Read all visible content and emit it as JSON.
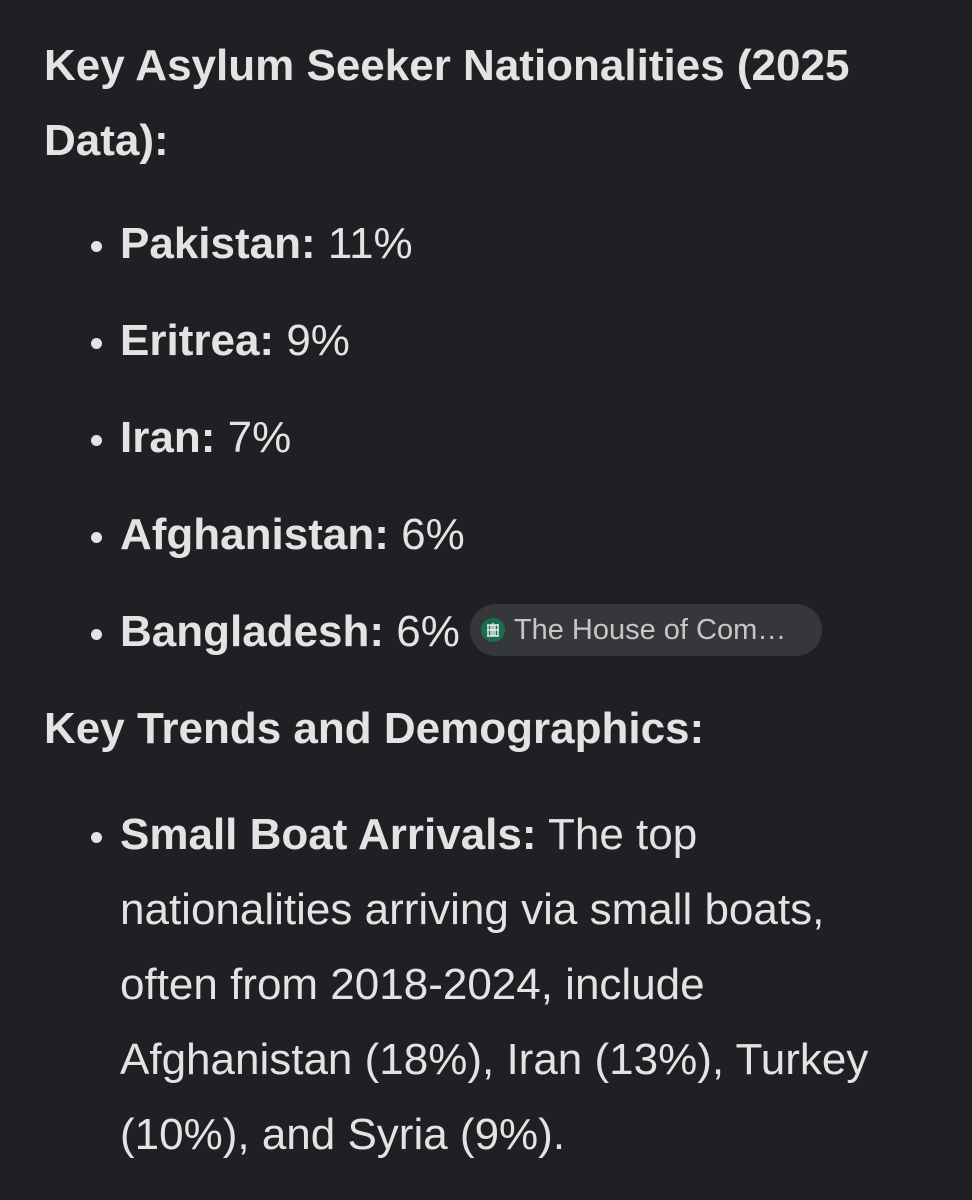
{
  "heading_1": "Key Asylum Seeker Nationalities (2025 Data):",
  "nationalities": [
    {
      "label": "Pakistan:",
      "value": "11%"
    },
    {
      "label": "Eritrea:",
      "value": "9%"
    },
    {
      "label": "Iran:",
      "value": "7%"
    },
    {
      "label": "Afghanistan:",
      "value": "6%"
    },
    {
      "label": "Bangladesh:",
      "value": "6%"
    }
  ],
  "source_chip": "The House of Com…",
  "heading_2": "Key Trends and Demographics:",
  "trends": [
    {
      "label": "Small Boat Arrivals:",
      "text": "The top nationalities arriving via small boats, often from 2018-2024, include Afghanistan (18%), Iran (13%), Turkey (10%), and Syria (9%)."
    }
  ]
}
